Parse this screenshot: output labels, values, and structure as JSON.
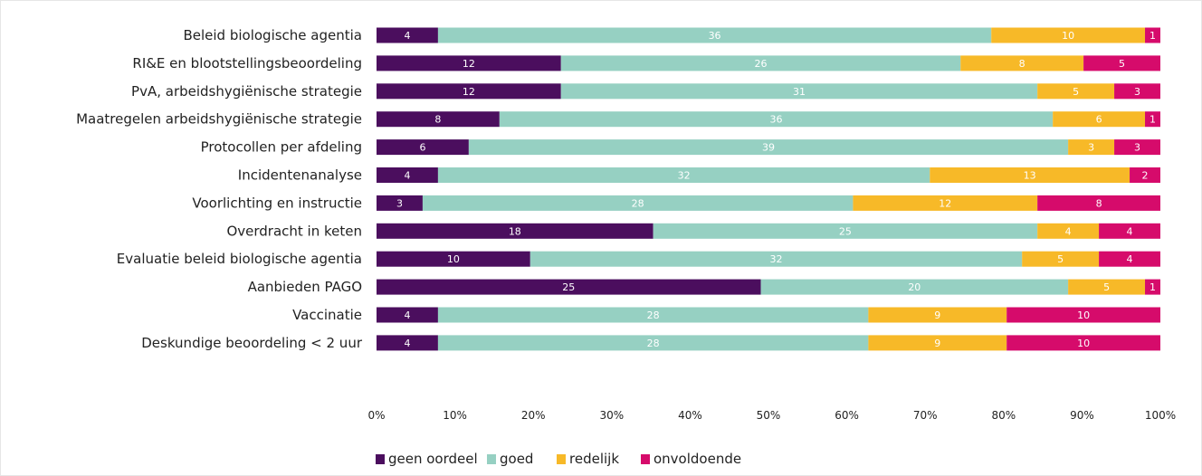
{
  "chart_data": {
    "type": "bar",
    "orientation": "horizontal",
    "stacked": true,
    "normalized": true,
    "categories": [
      "Beleid biologische agentia",
      "RI&E en blootstellingsbeoordeling",
      "PvA, arbeidshygiënische strategie",
      "Maatregelen arbeidshygiënische strategie",
      "Protocollen per afdeling",
      "Incidentenanalyse",
      "Voorlichting en instructie",
      "Overdracht in keten",
      "Evaluatie beleid biologische agentia",
      "Aanbieden PAGO",
      "Vaccinatie",
      "Deskundige beoordeling < 2 uur"
    ],
    "series": [
      {
        "name": "geen oordeel",
        "color": "#4b0e5e",
        "values": [
          4,
          12,
          12,
          8,
          6,
          4,
          3,
          18,
          10,
          25,
          4,
          4
        ]
      },
      {
        "name": "goed",
        "color": "#96d0c2",
        "values": [
          36,
          26,
          31,
          36,
          39,
          32,
          28,
          25,
          32,
          20,
          28,
          28
        ]
      },
      {
        "name": "redelijk",
        "color": "#f7b928",
        "values": [
          10,
          8,
          5,
          6,
          3,
          13,
          12,
          4,
          5,
          5,
          9,
          9
        ]
      },
      {
        "name": "onvoldoende",
        "color": "#d60b6b",
        "values": [
          1,
          5,
          3,
          1,
          3,
          2,
          8,
          4,
          4,
          1,
          10,
          10
        ]
      }
    ],
    "x_ticks": [
      "0%",
      "10%",
      "20%",
      "30%",
      "40%",
      "50%",
      "60%",
      "70%",
      "80%",
      "90%",
      "100%"
    ],
    "xlim": [
      0,
      100
    ],
    "grid": false,
    "legend_position": "bottom",
    "title": "",
    "xlabel": "",
    "ylabel": ""
  }
}
